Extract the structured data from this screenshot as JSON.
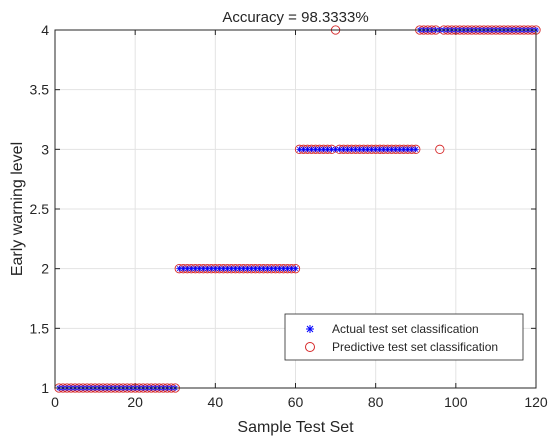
{
  "chart_data": {
    "type": "scatter",
    "title": "Accuracy = 98.3333%",
    "xlabel": "Sample Test Set",
    "ylabel": "Early warning level",
    "xlim": [
      0,
      120
    ],
    "ylim": [
      1,
      4
    ],
    "xticks": [
      0,
      20,
      40,
      60,
      80,
      100,
      120
    ],
    "yticks": [
      1,
      1.5,
      2,
      2.5,
      3,
      3.5,
      4
    ],
    "xtick_labels": [
      "0",
      "20",
      "40",
      "60",
      "80",
      "100",
      "120"
    ],
    "ytick_labels": [
      "1",
      "1.5",
      "2",
      "2.5",
      "3",
      "3.5",
      "4"
    ],
    "grid": true,
    "legend_position": "bottom-right",
    "series": [
      {
        "name": "Actual test set classification",
        "marker": "asterisk",
        "color": "#0000ff",
        "x": [
          1,
          2,
          3,
          4,
          5,
          6,
          7,
          8,
          9,
          10,
          11,
          12,
          13,
          14,
          15,
          16,
          17,
          18,
          19,
          20,
          21,
          22,
          23,
          24,
          25,
          26,
          27,
          28,
          29,
          30,
          31,
          32,
          33,
          34,
          35,
          36,
          37,
          38,
          39,
          40,
          41,
          42,
          43,
          44,
          45,
          46,
          47,
          48,
          49,
          50,
          51,
          52,
          53,
          54,
          55,
          56,
          57,
          58,
          59,
          60,
          61,
          62,
          63,
          64,
          65,
          66,
          67,
          68,
          69,
          70,
          71,
          72,
          73,
          74,
          75,
          76,
          77,
          78,
          79,
          80,
          81,
          82,
          83,
          84,
          85,
          86,
          87,
          88,
          89,
          90,
          91,
          92,
          93,
          94,
          95,
          96,
          97,
          98,
          99,
          100,
          101,
          102,
          103,
          104,
          105,
          106,
          107,
          108,
          109,
          110,
          111,
          112,
          113,
          114,
          115,
          116,
          117,
          118,
          119,
          120
        ],
        "y": [
          1,
          1,
          1,
          1,
          1,
          1,
          1,
          1,
          1,
          1,
          1,
          1,
          1,
          1,
          1,
          1,
          1,
          1,
          1,
          1,
          1,
          1,
          1,
          1,
          1,
          1,
          1,
          1,
          1,
          1,
          2,
          2,
          2,
          2,
          2,
          2,
          2,
          2,
          2,
          2,
          2,
          2,
          2,
          2,
          2,
          2,
          2,
          2,
          2,
          2,
          2,
          2,
          2,
          2,
          2,
          2,
          2,
          2,
          2,
          2,
          3,
          3,
          3,
          3,
          3,
          3,
          3,
          3,
          3,
          3,
          3,
          3,
          3,
          3,
          3,
          3,
          3,
          3,
          3,
          3,
          3,
          3,
          3,
          3,
          3,
          3,
          3,
          3,
          3,
          3,
          4,
          4,
          4,
          4,
          4,
          4,
          4,
          4,
          4,
          4,
          4,
          4,
          4,
          4,
          4,
          4,
          4,
          4,
          4,
          4,
          4,
          4,
          4,
          4,
          4,
          4,
          4,
          4,
          4,
          4
        ]
      },
      {
        "name": "Predictive test set classification",
        "marker": "circle",
        "color": "#d62728",
        "x": [
          1,
          2,
          3,
          4,
          5,
          6,
          7,
          8,
          9,
          10,
          11,
          12,
          13,
          14,
          15,
          16,
          17,
          18,
          19,
          20,
          21,
          22,
          23,
          24,
          25,
          26,
          27,
          28,
          29,
          30,
          31,
          32,
          33,
          34,
          35,
          36,
          37,
          38,
          39,
          40,
          41,
          42,
          43,
          44,
          45,
          46,
          47,
          48,
          49,
          50,
          51,
          52,
          53,
          54,
          55,
          56,
          57,
          58,
          59,
          60,
          61,
          62,
          63,
          64,
          65,
          66,
          67,
          68,
          69,
          70,
          71,
          72,
          73,
          74,
          75,
          76,
          77,
          78,
          79,
          80,
          81,
          82,
          83,
          84,
          85,
          86,
          87,
          88,
          89,
          90,
          91,
          92,
          93,
          94,
          95,
          96,
          97,
          98,
          99,
          100,
          101,
          102,
          103,
          104,
          105,
          106,
          107,
          108,
          109,
          110,
          111,
          112,
          113,
          114,
          115,
          116,
          117,
          118,
          119,
          120
        ],
        "y": [
          1,
          1,
          1,
          1,
          1,
          1,
          1,
          1,
          1,
          1,
          1,
          1,
          1,
          1,
          1,
          1,
          1,
          1,
          1,
          1,
          1,
          1,
          1,
          1,
          1,
          1,
          1,
          1,
          1,
          1,
          2,
          2,
          2,
          2,
          2,
          2,
          2,
          2,
          2,
          2,
          2,
          2,
          2,
          2,
          2,
          2,
          2,
          2,
          2,
          2,
          2,
          2,
          2,
          2,
          2,
          2,
          2,
          2,
          2,
          2,
          3,
          3,
          3,
          3,
          3,
          3,
          3,
          3,
          3,
          4,
          3,
          3,
          3,
          3,
          3,
          3,
          3,
          3,
          3,
          3,
          3,
          3,
          3,
          3,
          3,
          3,
          3,
          3,
          3,
          3,
          4,
          4,
          4,
          4,
          4,
          3,
          4,
          4,
          4,
          4,
          4,
          4,
          4,
          4,
          4,
          4,
          4,
          4,
          4,
          4,
          4,
          4,
          4,
          4,
          4,
          4,
          4,
          4,
          4,
          4
        ]
      }
    ]
  }
}
